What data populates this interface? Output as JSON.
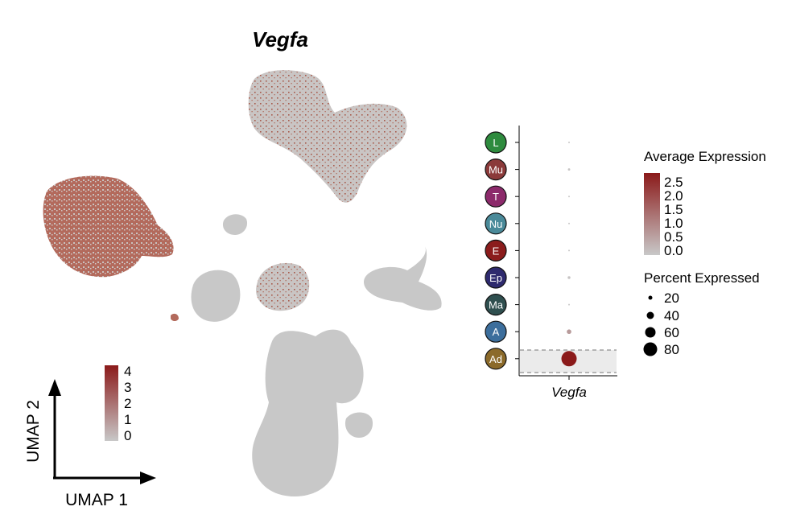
{
  "umap": {
    "title": "Vegfa",
    "axis_x_label": "UMAP 1",
    "axis_y_label": "UMAP 2",
    "colorbar_ticks": [
      "4",
      "3",
      "2",
      "1",
      "0"
    ],
    "colors": {
      "low": "#c8c8c8",
      "high": "#8b1a1a"
    }
  },
  "chart_data": {
    "type": "scatter",
    "title": "Vegfa",
    "subtype": "dot-plot",
    "gene": "Vegfa",
    "xlabel": "Vegfa",
    "categories": [
      "L",
      "Mu",
      "T",
      "Nu",
      "E",
      "Ep",
      "Ma",
      "A",
      "Ad"
    ],
    "category_colors": [
      "#2e8b3e",
      "#8b3a3a",
      "#8c2a6b",
      "#4a8a99",
      "#8b1c1c",
      "#2e2a6e",
      "#2f4f4f",
      "#3c6e9c",
      "#8b6a2a"
    ],
    "average_expression": [
      0.02,
      0.05,
      0.01,
      0.02,
      0.03,
      0.08,
      0.02,
      0.7,
      2.7
    ],
    "percent_expressed": [
      1,
      2,
      1,
      1,
      1,
      3,
      1,
      8,
      90
    ],
    "highlighted_category": "Ad",
    "legend": {
      "color_title": "Average Expression",
      "color_ticks": [
        "2.5",
        "2.0",
        "1.5",
        "1.0",
        "0.5",
        "0.0"
      ],
      "size_title": "Percent Expressed",
      "size_ticks": [
        "20",
        "40",
        "60",
        "80"
      ]
    }
  }
}
